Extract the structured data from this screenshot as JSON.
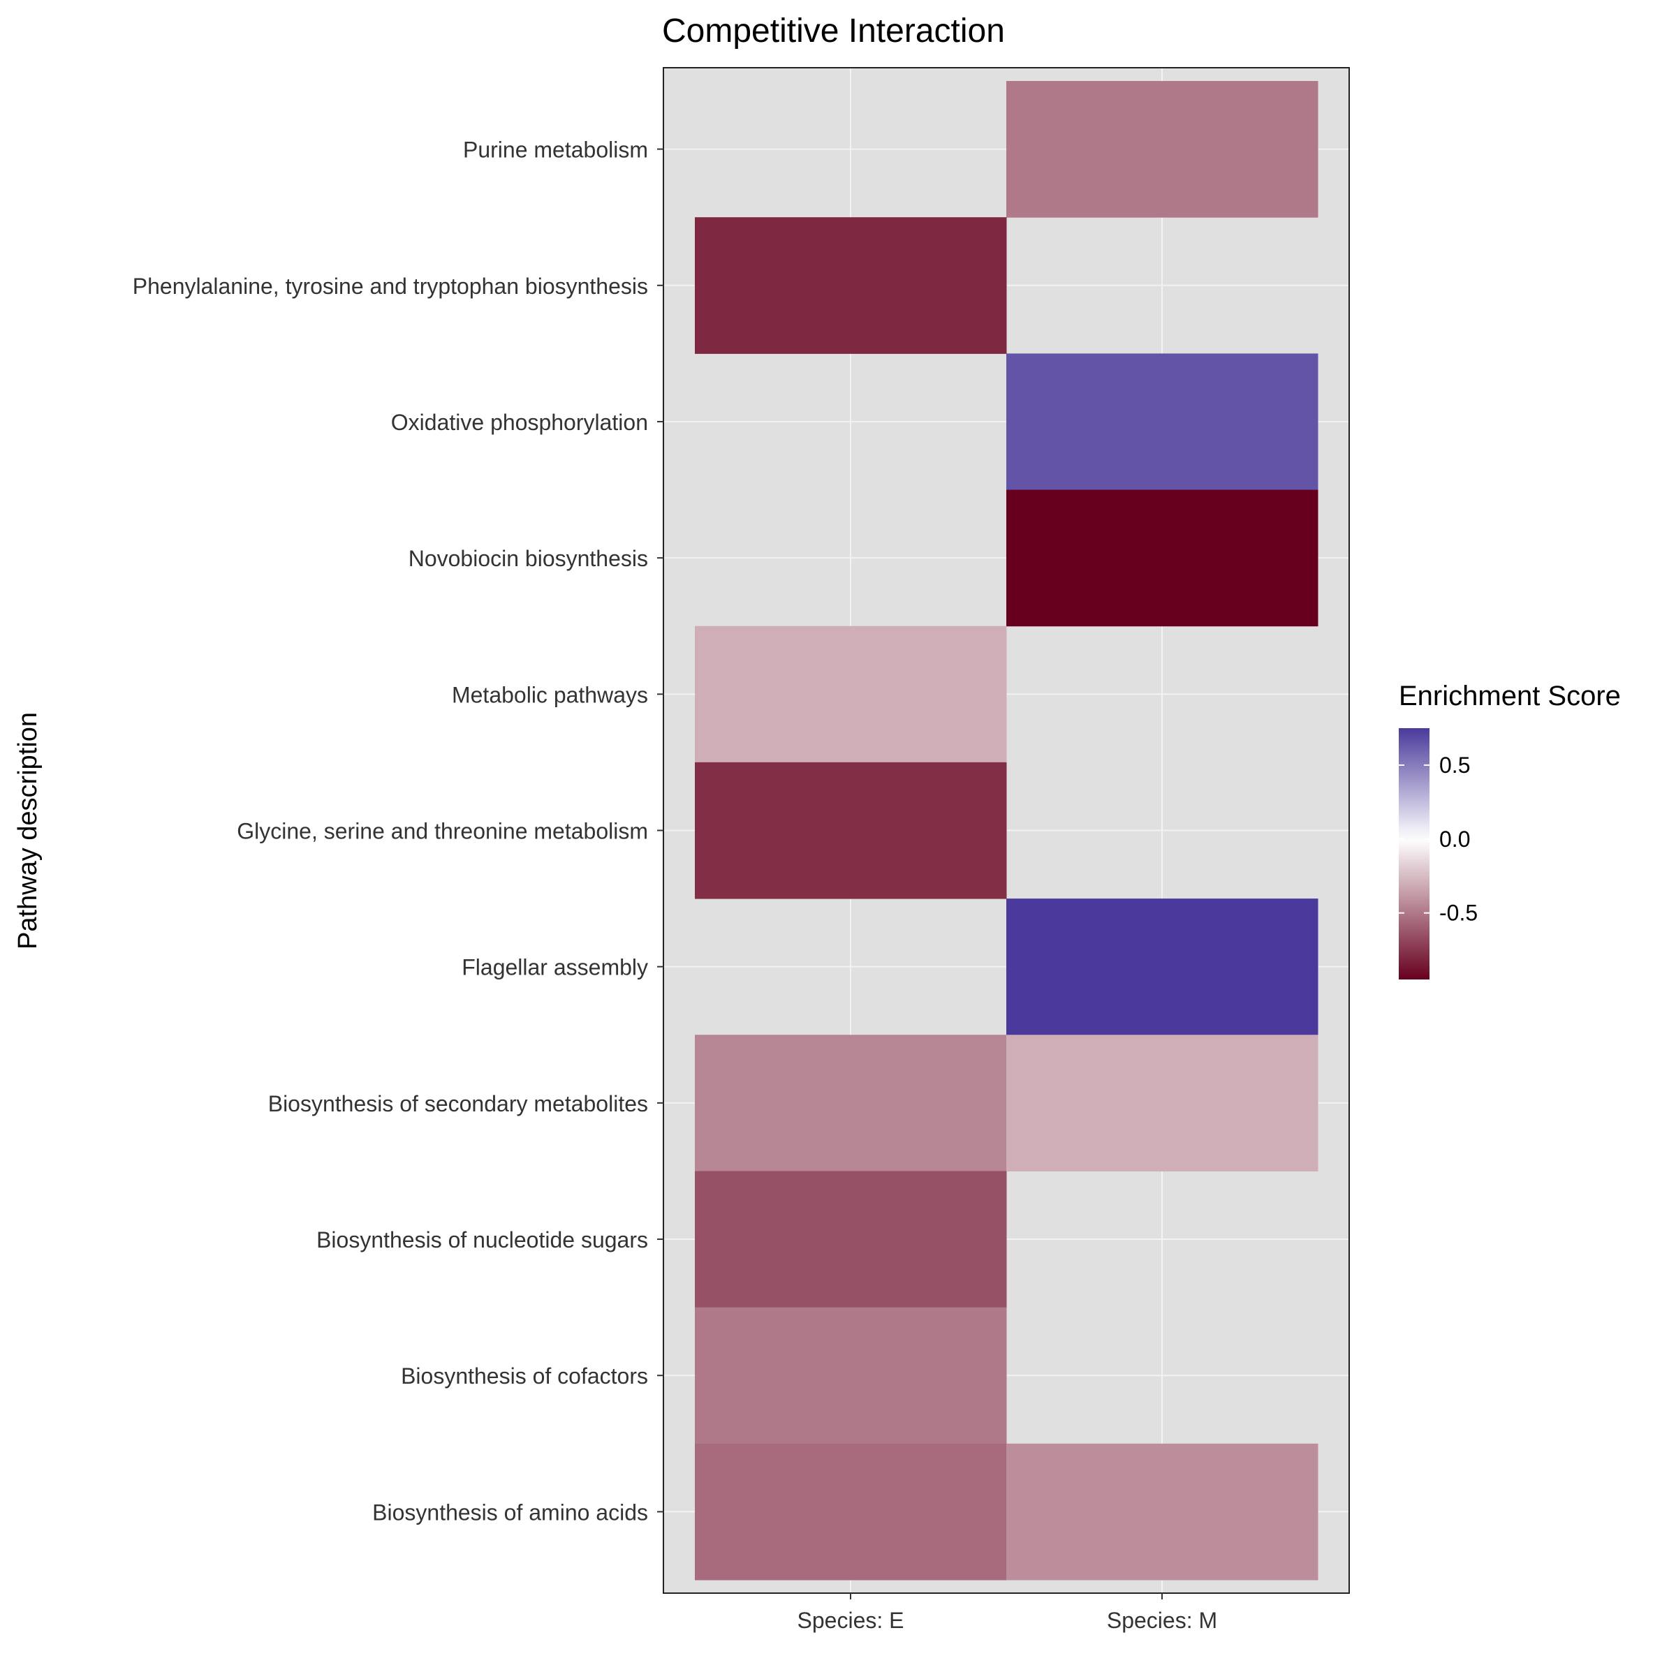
{
  "chart_data": {
    "type": "heatmap",
    "title": "Competitive Interaction",
    "xlabel": "",
    "ylabel": "Pathway description",
    "x_categories": [
      "Species: E",
      "Species: M"
    ],
    "y_categories": [
      "Purine metabolism",
      "Phenylalanine, tyrosine and tryptophan biosynthesis",
      "Oxidative phosphorylation",
      "Novobiocin biosynthesis",
      "Metabolic pathways",
      "Glycine, serine and threonine metabolism",
      "Flagellar assembly",
      "Biosynthesis of secondary metabolites",
      "Biosynthesis of nucleotide sugars",
      "Biosynthesis of cofactors",
      "Biosynthesis of amino acids"
    ],
    "cells": [
      {
        "x": "Species: M",
        "y": "Purine metabolism",
        "value": -0.5
      },
      {
        "x": "Species: E",
        "y": "Phenylalanine, tyrosine and tryptophan biosynthesis",
        "value": -0.8
      },
      {
        "x": "Species: M",
        "y": "Oxidative phosphorylation",
        "value": 0.65
      },
      {
        "x": "Species: M",
        "y": "Novobiocin biosynthesis",
        "value": -0.95
      },
      {
        "x": "Species: E",
        "y": "Metabolic pathways",
        "value": -0.3
      },
      {
        "x": "Species: E",
        "y": "Glycine, serine and threonine metabolism",
        "value": -0.78
      },
      {
        "x": "Species: M",
        "y": "Flagellar assembly",
        "value": 0.75
      },
      {
        "x": "Species: E",
        "y": "Biosynthesis of secondary metabolites",
        "value": -0.45
      },
      {
        "x": "Species: M",
        "y": "Biosynthesis of secondary metabolites",
        "value": -0.3
      },
      {
        "x": "Species: E",
        "y": "Biosynthesis of nucleotide sugars",
        "value": -0.65
      },
      {
        "x": "Species: E",
        "y": "Biosynthesis of cofactors",
        "value": -0.5
      },
      {
        "x": "Species: E",
        "y": "Biosynthesis of amino acids",
        "value": -0.55
      },
      {
        "x": "Species: M",
        "y": "Biosynthesis of amino acids",
        "value": -0.42
      }
    ],
    "legend": {
      "title": "Enrichment Score",
      "position": "right",
      "range": [
        -0.95,
        0.75
      ],
      "ticks": [
        0.5,
        0.0,
        -0.5
      ],
      "tick_labels": [
        "0.5",
        "0.0",
        "-0.5"
      ],
      "low_color": "#67001f",
      "mid_color": "#ffffff",
      "high_color": "#4b3a9b"
    },
    "panel_background": "#e0e0e0",
    "grid": true
  }
}
